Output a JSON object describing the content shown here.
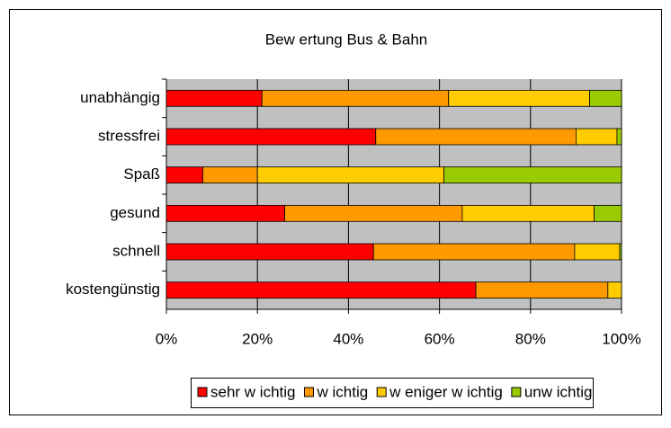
{
  "chart_data": {
    "type": "stacked_barh",
    "title": "Bew ertung Bus & Bahn",
    "categories": [
      "unabhängig",
      "stressfrei",
      "Spaß",
      "gesund",
      "schnell",
      "kostengünstig"
    ],
    "series": [
      {
        "name": "sehr w ichtig",
        "color": "#ff0000",
        "values": [
          21,
          46,
          8,
          26,
          45.5,
          68
        ]
      },
      {
        "name": "w ichtig",
        "color": "#ff9900",
        "values": [
          41,
          44,
          12,
          39,
          44.2,
          29
        ]
      },
      {
        "name": "w eniger w ichtig",
        "color": "#ffcc00",
        "values": [
          31,
          9,
          41,
          29,
          9.9,
          3
        ]
      },
      {
        "name": "unw ichtig",
        "color": "#99cc00",
        "values": [
          7,
          1,
          39,
          6,
          0.4,
          0
        ]
      }
    ],
    "xlim": [
      0,
      100
    ],
    "xticks": [
      {
        "value": 0,
        "label": "0%"
      },
      {
        "value": 20,
        "label": "20%"
      },
      {
        "value": 40,
        "label": "40%"
      },
      {
        "value": 60,
        "label": "60%"
      },
      {
        "value": 80,
        "label": "80%"
      },
      {
        "value": 100,
        "label": "100%"
      }
    ],
    "grid": true,
    "legend": "bottom"
  }
}
